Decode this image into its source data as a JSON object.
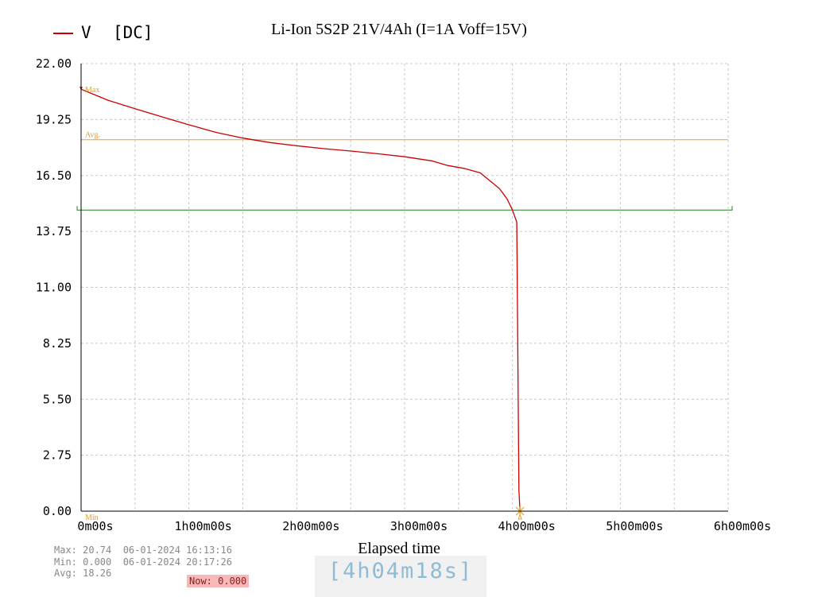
{
  "chart_data": {
    "type": "line",
    "title": "Li-Ion 5S2P 21V/4Ah (I=1A  Voff=15V)",
    "legend": {
      "label": "V",
      "mode": "[DC]",
      "position": "top-left"
    },
    "xlabel": "Elapsed time",
    "xlim": [
      0,
      6
    ],
    "x_unit": "hours",
    "x_tick_labels": [
      "0m00s",
      "1h00m00s",
      "2h00m00s",
      "3h00m00s",
      "4h00m00s",
      "5h00m00s",
      "6h00m00s"
    ],
    "ylim": [
      0,
      22
    ],
    "y_tick_labels": [
      "22.00",
      "19.25",
      "16.50",
      "13.75",
      "11.00",
      "8.25",
      "5.50",
      "2.75",
      "0.00"
    ],
    "grid": true,
    "series": [
      {
        "name": "V",
        "color": "#cc0000",
        "x": [
          0,
          0.25,
          0.5,
          0.75,
          1.0,
          1.25,
          1.5,
          1.75,
          2.0,
          2.25,
          2.5,
          2.75,
          3.0,
          3.25,
          3.4,
          3.55,
          3.7,
          3.8,
          3.88,
          3.95,
          4.0,
          4.04,
          4.06,
          4.07
        ],
        "y": [
          20.74,
          20.2,
          19.78,
          19.38,
          18.99,
          18.62,
          18.34,
          18.12,
          17.96,
          17.82,
          17.7,
          17.57,
          17.42,
          17.22,
          16.99,
          16.85,
          16.63,
          16.2,
          15.85,
          15.35,
          14.8,
          14.2,
          1.0,
          0.0
        ]
      }
    ],
    "reference_lines": [
      {
        "label": "Avg.",
        "y": 18.26,
        "color": "#e0a030"
      },
      {
        "label": "",
        "y": 14.8,
        "color": "#208020"
      }
    ],
    "markers": [
      {
        "label": "Max",
        "x": 0.0,
        "y": 20.74,
        "color": "#cc0000"
      },
      {
        "label": "Min",
        "x": 4.07,
        "y": 0.0,
        "color": "#e0a030"
      }
    ]
  },
  "stats": {
    "max_line": "Max: 20.74  06-01-2024 16:13:16",
    "min_line": "Min: 0.000  06-01-2024 20:17:26",
    "avg_line": "Avg: 18.26",
    "now": "Now: 0.000"
  },
  "elapsed_display": "[4h04m18s]"
}
